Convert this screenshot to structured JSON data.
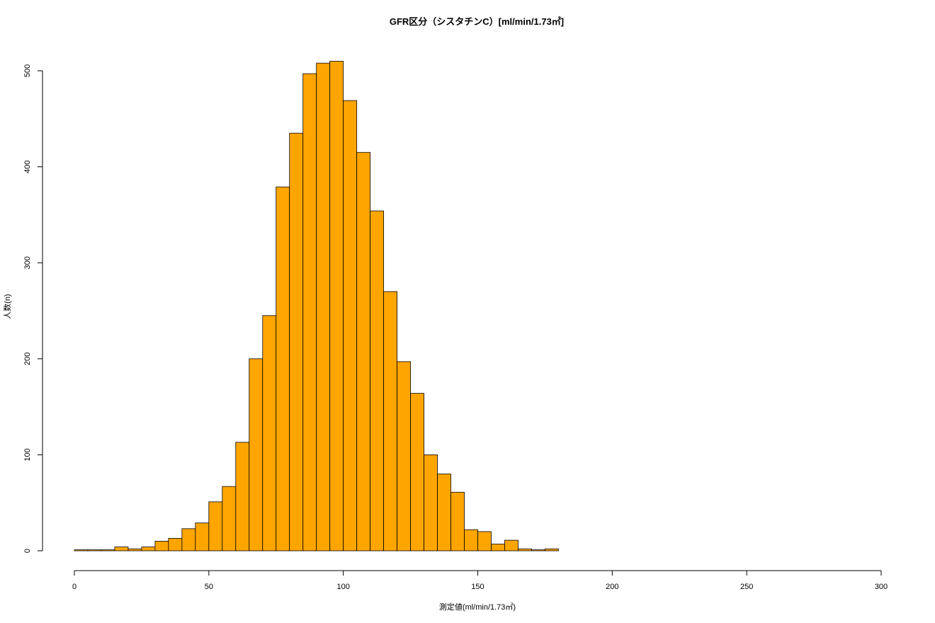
{
  "chart_data": {
    "type": "bar",
    "title": "GFR区分（シスタチンC）[ml/min/1.73㎡]",
    "xlabel": "測定値(ml/min/1.73㎡)",
    "ylabel": "人数(n)",
    "bin_width": 5,
    "bin_start": 0,
    "values": [
      1,
      1,
      1,
      4,
      2,
      4,
      10,
      13,
      23,
      29,
      51,
      67,
      113,
      200,
      245,
      379,
      435,
      497,
      508,
      510,
      469,
      415,
      354,
      270,
      197,
      164,
      100,
      80,
      61,
      22,
      20,
      7,
      11,
      2,
      1,
      2
    ],
    "xlim": [
      0,
      300
    ],
    "ylim": [
      0,
      510
    ],
    "xticks": [
      0,
      50,
      100,
      150,
      200,
      250,
      300
    ],
    "yticks": [
      0,
      100,
      200,
      300,
      400,
      500
    ],
    "bar_color": "#FFA500",
    "grid": false
  }
}
